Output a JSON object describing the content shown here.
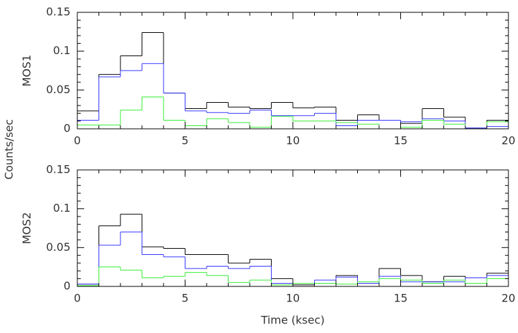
{
  "ylabel": "Counts/sec",
  "chart_data": [
    {
      "type": "histogram",
      "ylabel": "MOS1",
      "bins": [
        0,
        1,
        2,
        3,
        4,
        5,
        6,
        7,
        8,
        9,
        10,
        11,
        12,
        13,
        14,
        15,
        16,
        17,
        18,
        19,
        20
      ],
      "series": [
        {
          "color": "#000000",
          "values": [
            0.023,
            0.07,
            0.094,
            0.124,
            0.046,
            0.026,
            0.034,
            0.028,
            0.026,
            0.034,
            0.027,
            0.028,
            0.011,
            0.018,
            0.011,
            0.007,
            0.026,
            0.015,
            0.001,
            0.011
          ]
        },
        {
          "color": "#3333ff",
          "values": [
            0.011,
            0.067,
            0.075,
            0.084,
            0.046,
            0.023,
            0.021,
            0.02,
            0.024,
            0.017,
            0.017,
            0.02,
            0.004,
            0.011,
            0.011,
            0.009,
            0.013,
            0.01,
            0.001,
            0.003
          ]
        },
        {
          "color": "#33ee33",
          "values": [
            0.005,
            0.005,
            0.024,
            0.041,
            0.011,
            0.004,
            0.013,
            0.008,
            0.002,
            0.016,
            0.01,
            0.01,
            0.008,
            0.006,
            0,
            0.002,
            0.011,
            0.006,
            0,
            0.009
          ]
        }
      ],
      "xlim": [
        0,
        20
      ],
      "xticks": [
        0,
        5,
        10,
        15,
        20
      ],
      "ylim": [
        0,
        0.15
      ],
      "yticks": [
        0,
        0.05,
        0.1,
        0.15
      ],
      "yminorticks": [
        0.01,
        0.02,
        0.03,
        0.04,
        0.06,
        0.07,
        0.08,
        0.09,
        0.11,
        0.12,
        0.13,
        0.14
      ]
    },
    {
      "type": "histogram",
      "ylabel": "MOS2",
      "xlabel": "Time (ksec)",
      "bins": [
        0,
        1,
        2,
        3,
        4,
        5,
        6,
        7,
        8,
        9,
        10,
        11,
        12,
        13,
        14,
        15,
        16,
        17,
        18,
        19,
        20
      ],
      "series": [
        {
          "color": "#000000",
          "values": [
            0.003,
            0.078,
            0.093,
            0.051,
            0.049,
            0.041,
            0.041,
            0.03,
            0.035,
            0.01,
            0.002,
            0.004,
            0.014,
            0.004,
            0.023,
            0.014,
            0.006,
            0.013,
            0.011,
            0.017
          ]
        },
        {
          "color": "#3333ff",
          "values": [
            0.003,
            0.053,
            0.07,
            0.041,
            0.038,
            0.023,
            0.026,
            0.023,
            0.026,
            0.004,
            0.004,
            0.008,
            0.012,
            0.004,
            0.013,
            0.006,
            0.006,
            0.006,
            0.011,
            0.014
          ]
        },
        {
          "color": "#33ee33",
          "values": [
            0.001,
            0.025,
            0.021,
            0.011,
            0.013,
            0.018,
            0.014,
            0.005,
            0.008,
            0.002,
            0.004,
            0.004,
            0.003,
            0.006,
            0.01,
            0.008,
            0.004,
            0.008,
            0.004,
            0.01
          ]
        }
      ],
      "xlim": [
        0,
        20
      ],
      "xticks": [
        0,
        5,
        10,
        15,
        20
      ],
      "ylim": [
        0,
        0.15
      ],
      "yticks": [
        0,
        0.05,
        0.1,
        0.15
      ],
      "yminorticks": [
        0.01,
        0.02,
        0.03,
        0.04,
        0.06,
        0.07,
        0.08,
        0.09,
        0.11,
        0.12,
        0.13,
        0.14
      ]
    }
  ]
}
